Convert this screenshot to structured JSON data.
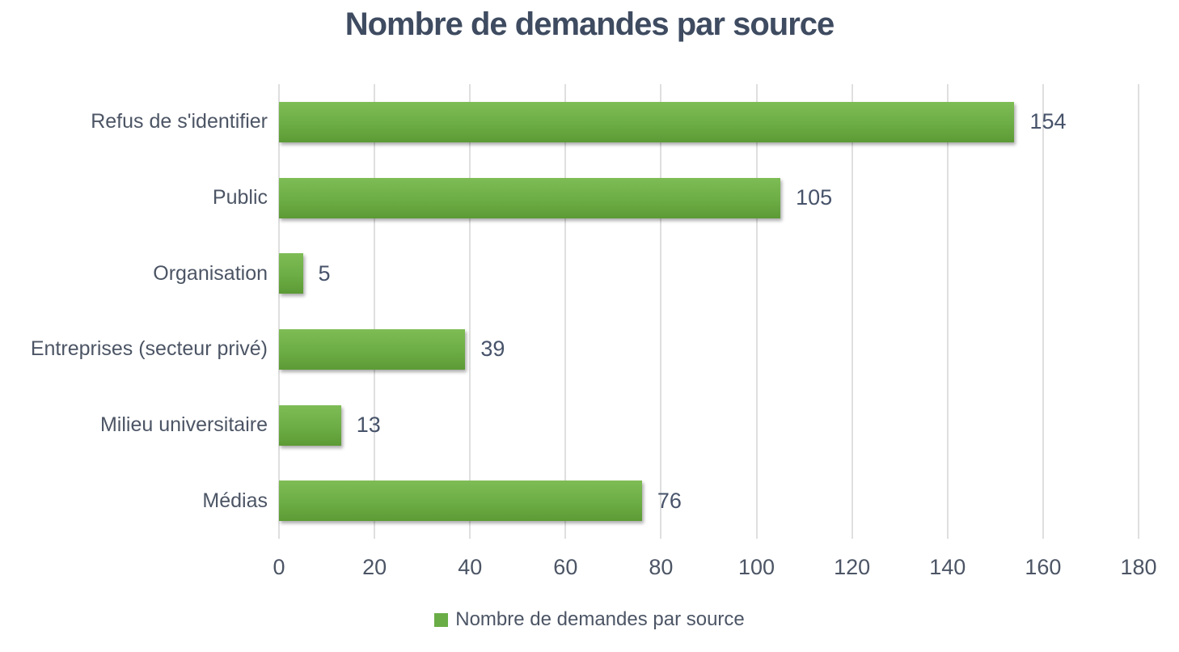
{
  "chart_data": {
    "type": "bar",
    "orientation": "horizontal",
    "title": "Nombre de demandes par source",
    "categories": [
      "Refus de s'identifier",
      "Public",
      "Organisation",
      "Entreprises (secteur privé)",
      "Milieu universitaire",
      "Médias"
    ],
    "values": [
      154,
      105,
      5,
      39,
      13,
      76
    ],
    "data_labels": [
      "154",
      "105",
      "5",
      "39",
      "13",
      "76"
    ],
    "xlim": [
      0,
      180
    ],
    "x_ticks": [
      0,
      20,
      40,
      60,
      80,
      100,
      120,
      140,
      160,
      180
    ],
    "grid": "vertical-only",
    "legend": {
      "position": "bottom",
      "label": "Nombre de demandes par source"
    },
    "colors": {
      "bar_gradient_top": "#7ebc55",
      "bar_gradient_bottom": "#5c9a35",
      "bar_solid": "#6aad47",
      "title_text": "#3e4b60",
      "axis_text": "#4c5565",
      "value_text": "#47536a",
      "gridline": "#dfdfdf",
      "background": "#ffffff"
    }
  }
}
